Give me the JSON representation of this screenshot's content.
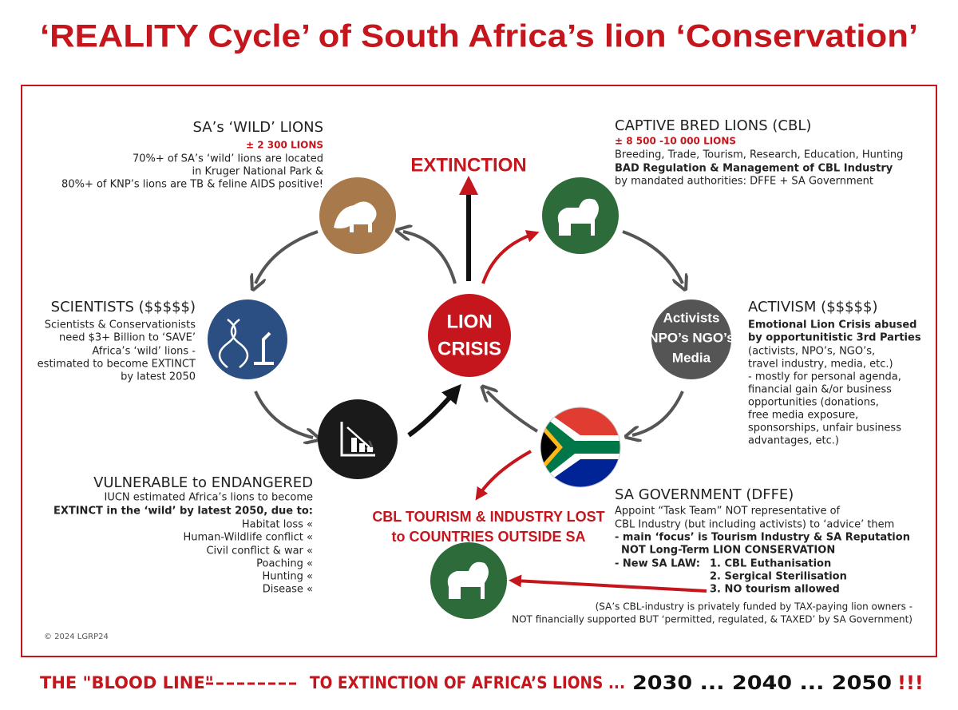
{
  "title": "‘REALITY Cycle’ of South Africa’s lion ‘Conservation’",
  "wild_lions": {
    "heading": "SA’s ‘WILD’ LIONS",
    "count": "± 2 300 LIONS",
    "lines": [
      "70%+ of SA’s ‘wild’ lions are located",
      "in Kruger National Park &",
      "80%+ of KNP’s lions are TB & feline AIDS positive!"
    ]
  },
  "captive_lions": {
    "heading": "CAPTIVE BRED LIONS (CBL)",
    "count": "± 8 500 -10 000 LIONS",
    "lines": [
      "Breeding, Trade, Tourism, Research, Education, Hunting",
      "BAD Regulation & Management of CBL Industry",
      "by mandated authorities: DFFE + SA Government"
    ]
  },
  "extinction": "EXTINCTION",
  "center": [
    "LION",
    "CRISIS"
  ],
  "scientists": {
    "heading": "SCIENTISTS ($$$$$)",
    "lines": [
      "Scientists & Conservationists",
      "need $3+ Billion to ‘SAVE’",
      "Africa’s ‘wild’ lions -",
      "estimated to become EXTINCT",
      "by latest 2050"
    ]
  },
  "activism": {
    "heading": "ACTIVISM ($$$$$)",
    "icon_lines": [
      "Activists",
      "NPO’s NGO’s",
      "Media"
    ],
    "lines": [
      "Emotional Lion Crisis abused",
      "by opportunitistic 3rd Parties",
      "(activists, NPO’s, NGO’s,",
      "travel industry, media, etc.)",
      "- mostly for personal agenda,",
      "financial gain &/or business",
      "opportunities (donations,",
      "free media exposure,",
      " sponsorships, unfair business",
      "advantages, etc.)"
    ]
  },
  "vulnerable": {
    "heading": "VULNERABLE to ENDANGERED",
    "lines": [
      "IUCN estimated Africa’s lions to become",
      "EXTINCT in the ‘wild’ by latest 2050, due to:"
    ],
    "causes": [
      "Habitat loss «",
      "Human-Wildlife conflict «",
      "Civil conflict & war «",
      "Poaching «",
      "Hunting «",
      "Disease «"
    ]
  },
  "lost": [
    "CBL TOURISM & INDUSTRY LOST",
    "to COUNTRIES OUTSIDE SA"
  ],
  "government": {
    "heading": "SA GOVERNMENT (DFFE)",
    "lines": [
      "Appoint “Task Team” NOT representative of",
      "CBL Industry (but including activists) to ‘advice’ them",
      "- main ‘focus’ is Tourism Industry & SA Reputation",
      "NOT Long-Term LION CONSERVATION",
      "- New SA LAW:"
    ],
    "law": [
      "1. CBL Euthanisation",
      "2. Sergical Sterilisation",
      "3. NO tourism allowed"
    ]
  },
  "footnote": [
    "(SA’s CBL-industry is privately funded by TAX-paying lion owners -",
    "NOT financially supported BUT ‘permitted, regulated, & TAXED’ by SA Government)"
  ],
  "copyright": "© 2024 LGRP24",
  "footer": [
    "THE \"BLOOD LINE\"",
    "TO EXTINCTION OF AFRICA’S LIONS ...",
    "2030 ... 2040 ... 2050",
    "!!!"
  ]
}
